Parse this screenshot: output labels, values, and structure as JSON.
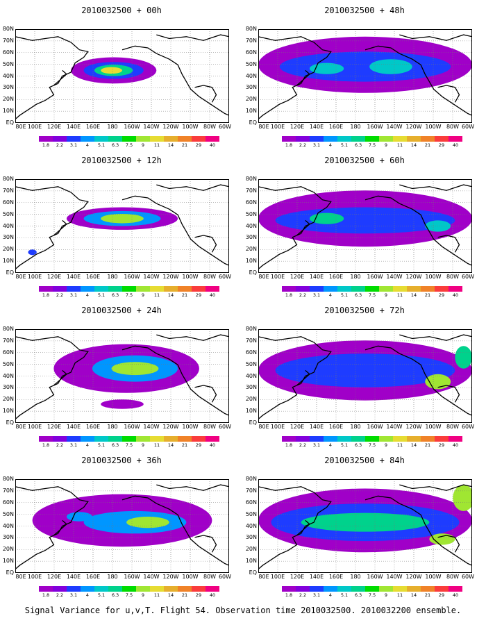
{
  "caption": "Signal Variance for u,v,T. Flight 54. Observation time 2010032500. 2010032200 ensemble.",
  "lat_labels": [
    "80N",
    "70N",
    "60N",
    "50N",
    "40N",
    "30N",
    "20N",
    "10N",
    "EQ"
  ],
  "lon_labels": [
    "80E",
    "100E",
    "120E",
    "140E",
    "160E",
    "180",
    "160W",
    "140W",
    "120W",
    "100W",
    "80W",
    "60W"
  ],
  "colorbar": {
    "levels": [
      "1.8",
      "2.2",
      "3.1",
      "4",
      "5.1",
      "6.3",
      "7.5",
      "9",
      "11",
      "14",
      "21",
      "29",
      "40"
    ],
    "colors": [
      "#a000c8",
      "#8200dc",
      "#1e3cff",
      "#0096ff",
      "#00c8c8",
      "#00d28c",
      "#00dc00",
      "#a0e632",
      "#e6dc32",
      "#e6af2d",
      "#f08228",
      "#fa3c3c",
      "#f00082"
    ]
  },
  "panels": [
    {
      "title": "2010032500 + 00h",
      "lead_hours": 0
    },
    {
      "title": "2010032500 + 48h",
      "lead_hours": 48
    },
    {
      "title": "2010032500 + 12h",
      "lead_hours": 12
    },
    {
      "title": "2010032500 + 60h",
      "lead_hours": 60
    },
    {
      "title": "2010032500 + 24h",
      "lead_hours": 24
    },
    {
      "title": "2010032500 + 72h",
      "lead_hours": 72
    },
    {
      "title": "2010032500 + 36h",
      "lead_hours": 36
    },
    {
      "title": "2010032500 + 84h",
      "lead_hours": 84
    }
  ]
}
